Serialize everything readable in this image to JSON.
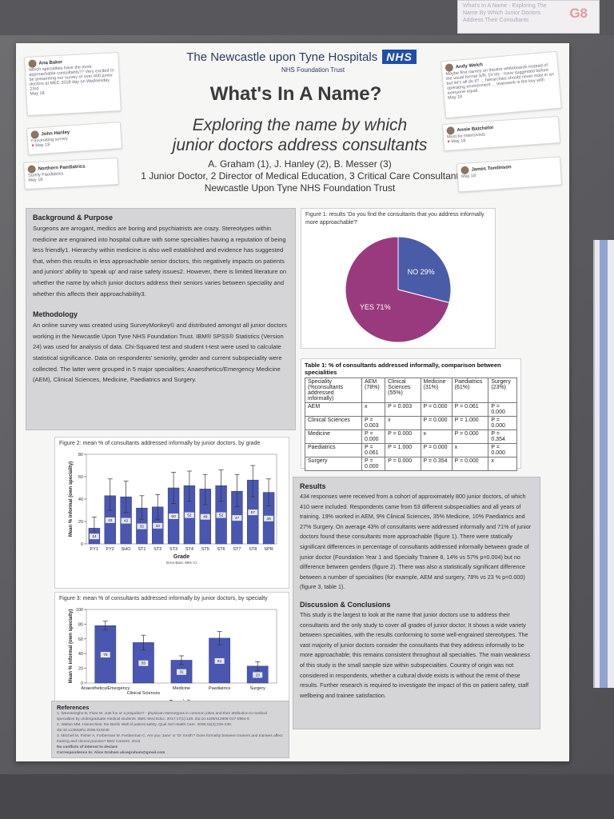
{
  "corner_card": {
    "text": "What's In A Name - Exploring The Name By Which Junior Doctors Address Their Consultants",
    "code": "G8"
  },
  "header": {
    "trust_name": "The Newcastle upon Tyne Hospitals",
    "nhs_logo": "NHS",
    "trust_sub": "NHS Foundation Trust",
    "title": "What's In A Name?",
    "subtitle_line1": "Exploring the name by which",
    "subtitle_line2": "junior doctors address consultants",
    "authors": "A. Graham (1), J. Hanley (2), B. Messer (3)",
    "roles": "1 Junior Doctor, 2 Director of Medical Education, 3 Critical Care Consultant",
    "institution": "Newcastle Upon Tyne NHS Foundation Trust"
  },
  "tweets": [
    {
      "name": "Ana Baker",
      "text": "Which specialties have the most approachable consultants?? Very excited to be presenting our survey of over 400 junior doctors at MEC 2018 day on Wednesday 23rd",
      "meta": "May 18"
    },
    {
      "name": "John Hanley",
      "text": "Fascinating survey",
      "meta": "May 18"
    },
    {
      "name": "Northern Paediatrics",
      "text": "Surely Paediatrics",
      "meta": "May 18"
    },
    {
      "name": "Andy Welch",
      "text": "Maybe first names on theatre whiteboards instead of the usual formal S/N. Dr etc - have suggested before but let's all do it? ... hierarchies should never exist in an operating environment ... teamwork is the key with everyone equal.",
      "meta": "May 18"
    },
    {
      "name": "Annie Batchelor",
      "text": "Must be intensivists",
      "meta": "May 18"
    },
    {
      "name": "James Tomlinson",
      "text": "",
      "meta": "May 18"
    }
  ],
  "background": {
    "heading": "Background & Purpose",
    "text": "Surgeons are arrogant, medics are boring and psychiatrists are crazy. Stereotypes within medicine are engrained into hospital culture with some specialties having a reputation of being less friendly1. Hierarchy within medicine is also well established and evidence has suggested that, when this results in less approachable senior doctors, this negatively impacts on patients and juniors' ability to 'speak up' and raise safety issues2. However, there is limited literature on whether the name by which junior doctors address their seniors varies between speciality and whether this affects their approachability3."
  },
  "methodology": {
    "heading": "Methodology",
    "text": "An online survey was created using SurveyMonkey© and distributed amongst all junior doctors working in the Newcastle Upon Tyne NHS Foundation Trust. IBM® SPSS® Statistics (Version 24) was used for analysis of data. Chi-Squared test and student t-test were used to calculate statistical significance. Data on respondents' seniority, gender and current subspeciality were collected. The latter were grouped in 5 major specialities; Anaesthetics/Emergency Medicine (AEM), Clinical Sciences, Medicine, Paediatrics and Surgery."
  },
  "results": {
    "heading": "Results",
    "text": "434 responses were received from a cohort of approximately 800 junior doctors, of which 410 were included. Respondents came from 53 different subspecialties and all years of training. 19% worked in AEM, 9% Clinical Sciences, 35% Medicine, 10% Paediatrics and 27% Surgery. On average 43% of consultants were addressed informally and 71% of junior doctors found these consultants more approachable (figure 1). There were statically significant differences in percentage of consultants addressed informally between grade of junior doctor (Foundation Year 1 and Specialty Trainee 8, 14% vs 57% p=0.004) but no difference between genders (figure 2). There was also a statistically significant difference between a number of specialities (for example, AEM and surgery, 78% vs 23 % p=0.000) (figure 3, table 1)."
  },
  "discussion": {
    "heading": "Discussion & Conclusions",
    "text": "This study is the largest to look at the name that junior doctors use to address their consultants and the only study to cover all grades of junior doctor. It shows a wide variety between specialities, with the results conforming to some well-engrained stereotypes. The vast majority of junior doctors consider the consultants that they address informally to be more approachable; this remains consistent throughout all specialties. The main weakness of this study is the small sample size within subspecialties. Country of origin was not considered in respondents, whether a cultural divide exists is without the remit of these results. Further research is required to investigate the impact of this on patient safety, staff wellbeing and trainee satisfaction."
  },
  "references": {
    "heading": "References",
    "items": [
      "1. Weerasinghe B, Fiore M. Just fun or a prejudice? - physician stereotypes in common jokes and their attribution to medical specialties by undergraduate medical students. BMC Med Educ. 2017;17(1):128. doi:10.1186/s12909-017-0964-6",
      "2. Walton MM. Hierarchies: the Berlin Wall of patient safety. Qual Saf Health Care. 2006;15(4):229-230. doi:10.1136/qshc.2006.019240",
      "3. Mitchell M, Fisher A, Forberman M. Fenberman C. Are you 'Jane' or 'Dr Smith'? Does formality between trainers and trainees affect training and clinical practice? BMJ Careers. 2015",
      "No conflicts of interest to declare",
      "Correspondence to: Alice Graham  alicegraham@gmail.com"
    ]
  },
  "chart_data": [
    {
      "type": "pie",
      "title": "Figure 1: results 'Do you find the consultants that you address informally more approachable?'",
      "labels": [
        "YES",
        "NO"
      ],
      "values": [
        71,
        29
      ],
      "slice_labels": [
        "YES 71%",
        "NO 29%"
      ],
      "colors": [
        "#9a3a7e",
        "#4a5ca8"
      ]
    },
    {
      "type": "bar",
      "title": "Figure 2: mean % of consultants addressed informally by junior doctors, by grade",
      "xlabel": "Grade",
      "ylabel": "Mean % informal (own speciality)",
      "footnote": "Error Bars: 95% CI",
      "categories": [
        "FY1",
        "FY2",
        "SHO",
        "ST1",
        "ST2",
        "ST3",
        "ST4",
        "ST5",
        "ST6",
        "ST7",
        "ST8",
        "SPR"
      ],
      "values": [
        14,
        43,
        42,
        32,
        33,
        50,
        52,
        49,
        52,
        47,
        57,
        46
      ],
      "ci_low": [
        5,
        30,
        28,
        22,
        22,
        36,
        38,
        35,
        38,
        33,
        42,
        34
      ],
      "ci_high": [
        24,
        58,
        56,
        43,
        44,
        64,
        65,
        62,
        66,
        62,
        70,
        58
      ],
      "ylim": [
        0,
        80
      ],
      "yticks": [
        0,
        20,
        40,
        60,
        80
      ],
      "bar_color": "#4a57b0"
    },
    {
      "type": "bar",
      "title": "Figure 3: mean % of consultants addressed informally by junior doctors, by specialty",
      "xlabel": "Specialty",
      "ylabel": "Mean % informal (own specialty)",
      "footnote": "Error Bars: 95% CI",
      "categories": [
        "Anaesthetics/Emergency",
        "Clinical Sciences",
        "Medicine",
        "Paediatrics",
        "Surgery"
      ],
      "values": [
        78,
        55,
        31,
        61,
        23
      ],
      "ci_low": [
        72,
        45,
        25,
        52,
        17
      ],
      "ci_high": [
        84,
        65,
        37,
        70,
        29
      ],
      "ylim": [
        0,
        100
      ],
      "yticks": [
        0,
        20,
        40,
        60,
        80,
        100
      ],
      "bar_color": "#4a57b0"
    },
    {
      "type": "table",
      "title": "Table 1: % of consultants addressed informally, comparison between specialities",
      "header": [
        "Speciality (%consultants addressed informally)",
        "AEM (78%)",
        "Clinical Sciences (55%)",
        "Medicine (31%)",
        "Paediatrics (61%)",
        "Surgery (23%)"
      ],
      "rows": [
        [
          "AEM",
          "x",
          "P = 0.003",
          "P = 0.000",
          "P = 0.061",
          "P = 0.000"
        ],
        [
          "Clinical Sciences",
          "P = 0.003",
          "x",
          "P = 0.000",
          "P = 1.000",
          "P = 0.000"
        ],
        [
          "Medicine",
          "P = 0.000",
          "P = 0.000",
          "x",
          "P = 0.000",
          "P = 0.354"
        ],
        [
          "Paediatrics",
          "P = 0.061",
          "P = 1.000",
          "P = 0.000",
          "x",
          "P = 0.000"
        ],
        [
          "Surgery",
          "P = 0.000",
          "P = 0.000",
          "P = 0.354",
          "P = 0.000",
          "x"
        ]
      ]
    }
  ]
}
